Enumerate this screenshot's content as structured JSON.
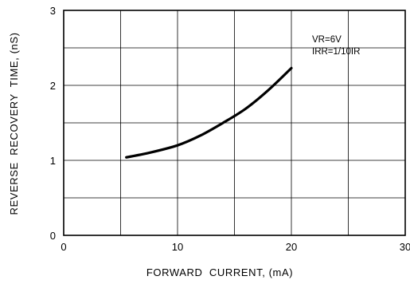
{
  "chart_data": {
    "type": "line",
    "title": "",
    "xlabel": "FORWARD  CURRENT, (mA)",
    "ylabel": "REVERSE  RECOVERY  TIME, (nS)",
    "xlim": [
      0,
      30
    ],
    "ylim": [
      0,
      3
    ],
    "x_ticks": [
      "0",
      "10",
      "20",
      "30"
    ],
    "y_ticks": [
      "0",
      "1",
      "2",
      "3"
    ],
    "x_grid_step": 5,
    "y_grid_step": 0.5,
    "grid": true,
    "legend": "none",
    "annotations": [
      "VR=6V",
      "IRR=1/10IR"
    ],
    "series": [
      {
        "x": [
          5.5,
          7.5,
          10,
          12,
          14,
          16,
          18,
          20
        ],
        "y": [
          1.04,
          1.1,
          1.2,
          1.33,
          1.5,
          1.69,
          1.94,
          2.23
        ]
      }
    ],
    "colors": {
      "line": "#000000",
      "grid": "#000000",
      "background": "#ffffff"
    }
  }
}
